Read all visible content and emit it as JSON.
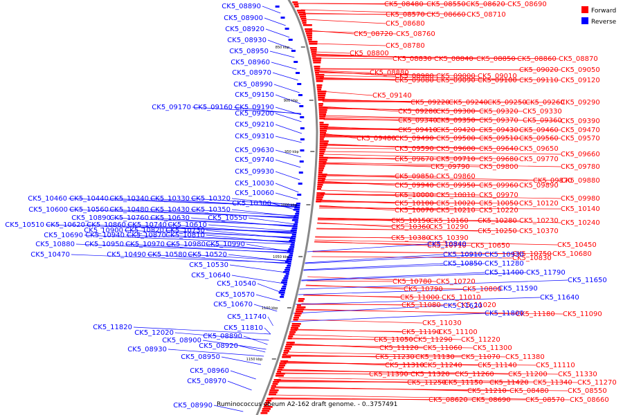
{
  "caption": "Ruminococcus obeum A2-162 draft genome. - 0..3757491",
  "legend": {
    "forward_label": "Forward",
    "reverse_label": "Reverse",
    "forward_color": "#ff0000",
    "reverse_color": "#0000ff"
  },
  "ticks": [
    "850 kbp",
    "900 kbp",
    "950 kbp",
    "1000 kbp",
    "1050 kbp",
    "1100 kbp",
    "1150 kbp"
  ],
  "forward_labels": [
    "CK5_08480",
    "CK5_08550",
    "CK5_08620",
    "CK5_08690",
    "CK5_08570",
    "CK5_08660",
    "CK5_08710",
    "CK5_08680",
    "CK5_08720",
    "CK5_08760",
    "CK5_08780",
    "CK5_08800",
    "CK5_08830",
    "CK5_08840",
    "CK5_08850",
    "CK5_08860",
    "CK5_08870",
    "CK5_08880",
    "CK5_09020",
    "CK5_09050",
    "CK5_08980",
    "CK5_09000",
    "CK5_09010",
    "CK5_09080",
    "CK5_09090",
    "CK5_09100",
    "CK5_09110",
    "CK5_09120",
    "CK5_09140",
    "CK5_09220",
    "CK5_09240",
    "CK5_09250",
    "CK5_09260",
    "CK5_09290",
    "CK5_09280",
    "CK5_09300",
    "CK5_09320",
    "CK5_09330",
    "CK5_09340",
    "CK5_09350",
    "CK5_09370",
    "CK5_09360",
    "CK5_09390",
    "CK5_09410",
    "CK5_09420",
    "CK5_09430",
    "CK5_09460",
    "CK5_09470",
    "CK5_09480",
    "CK5_09490",
    "CK5_09500",
    "CK5_09510",
    "CK5_09560",
    "CK5_09570",
    "CK5_09590",
    "CK5_09600",
    "CK5_09640",
    "CK5_09650",
    "CK5_09660",
    "CK5_09670",
    "CK5_09710",
    "CK5_09680",
    "CK5_09770",
    "CK5_09780",
    "CK5_09790",
    "CK5_09800",
    "CK5_09850",
    "CK5_09860",
    "CK5_09870",
    "CK5_09880",
    "CK5_09940",
    "CK5_09950",
    "CK5_09960",
    "CK5_09890",
    "CK5_10000",
    "CK5_10010",
    "CK5_09970",
    "CK5_09980",
    "CK5_10100",
    "CK5_10020",
    "CK5_10050",
    "CK5_10120",
    "CK5_10140",
    "CK5_10070",
    "CK5_10210",
    "CK5_10220",
    "CK5_10150",
    "CK5_10160",
    "CK5_10280",
    "CK5_10230",
    "CK5_10240",
    "CK5_10360",
    "CK5_10290",
    "CK5_10250",
    "CK5_10370",
    "CK5_10380",
    "CK5_10390",
    "CK5_10450",
    "CK5_10710",
    "CK5_10650",
    "CK5_10750",
    "CK5_10680",
    "CK5_10830",
    "CK5_10780",
    "CK5_10720",
    "CK5_10790",
    "CK5_10800",
    "CK5_11000",
    "CK5_11010",
    "CK5_11080",
    "CK5_11020",
    "CK5_11180",
    "CK5_11090",
    "CK5_11030",
    "CK5_11190",
    "CK5_11100",
    "CK5_11050",
    "CK5_11290",
    "CK5_11220",
    "CK5_11120",
    "CK5_11060",
    "CK5_11300",
    "CK5_11230",
    "CK5_11130",
    "CK5_11070",
    "CK5_11380",
    "CK5_11310",
    "CK5_11240",
    "CK5_11140",
    "CK5_11110",
    "CK5_11390",
    "CK5_11320",
    "CK5_11260",
    "CK5_11200",
    "CK5_11330",
    "CK5_11250",
    "CK5_11150",
    "CK5_11420",
    "CK5_11340",
    "CK5_11270",
    "CK5_11210"
  ],
  "reverse_labels": [
    "CK5_08890",
    "CK5_08900",
    "CK5_08920",
    "CK5_08930",
    "CK5_08950",
    "CK5_08960",
    "CK5_08970",
    "CK5_08990",
    "CK5_09150",
    "CK5_09170",
    "CK5_09160",
    "CK5_09190",
    "CK5_09200",
    "CK5_09210",
    "CK5_09310",
    "CK5_09630",
    "CK5_09740",
    "CK5_09930",
    "CK5_10030",
    "CK5_10060",
    "CK5_10300",
    "CK5_10460",
    "CK5_10440",
    "CK5_10340",
    "CK5_10330",
    "CK5_10320",
    "CK5_10600",
    "CK5_10560",
    "CK5_10480",
    "CK5_10430",
    "CK5_10350",
    "CK5_10890",
    "CK5_10760",
    "CK5_10630",
    "CK5_10550",
    "CK5_10510",
    "CK5_10620",
    "CK5_10860",
    "CK5_10740",
    "CK5_10610",
    "CK5_10900",
    "CK5_10820",
    "CK5_10730",
    "CK5_10690",
    "CK5_10940",
    "CK5_10870",
    "CK5_10810",
    "CK5_10880",
    "CK5_10950",
    "CK5_10970",
    "CK5_10980",
    "CK5_10990",
    "CK5_10470",
    "CK5_10490",
    "CK5_10580",
    "CK5_10520",
    "CK5_10530",
    "CK5_10640",
    "CK5_10540",
    "CK5_10570",
    "CK5_10670",
    "CK5_10840",
    "CK5_10910",
    "CK5_10930",
    "CK5_10850",
    "CK5_11280",
    "CK5_11400",
    "CK5_11790",
    "CK5_11650",
    "CK5_11590",
    "CK5_11640",
    "CK5_11620",
    "CK5_11800",
    "CK5_11740",
    "CK5_11810",
    "CK5_11820",
    "CK5_12020"
  ]
}
